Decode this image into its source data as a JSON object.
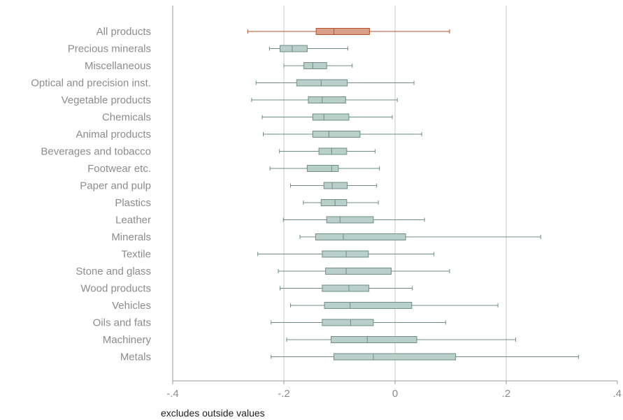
{
  "chart_data": {
    "type": "boxplot",
    "orientation": "horizontal",
    "xlim": [
      -0.4,
      0.4
    ],
    "xticks": [
      {
        "value": -0.4,
        "label": "-.4"
      },
      {
        "value": -0.2,
        "label": "-.2"
      },
      {
        "value": 0,
        "label": "0"
      },
      {
        "value": 0.2,
        "label": ".2"
      },
      {
        "value": 0.4,
        "label": ".4"
      }
    ],
    "grid": true,
    "colors": {
      "highlight_fill": "#d9a089",
      "highlight_stroke": "#b4522f",
      "box_fill": "#b9cfc9",
      "box_stroke": "#6d8e85",
      "grid": "#c8c8c8",
      "axis": "#9a9a9a"
    },
    "categories": [
      {
        "label": "All products",
        "highlight": true,
        "whisker_low": -0.265,
        "q1": -0.142,
        "median": -0.11,
        "q3": -0.046,
        "whisker_high": 0.098
      },
      {
        "label": "Precious minerals",
        "whisker_low": -0.226,
        "q1": -0.207,
        "median": -0.185,
        "q3": -0.158,
        "whisker_high": -0.085
      },
      {
        "label": "Miscellaneous",
        "whisker_low": -0.2,
        "q1": -0.164,
        "median": -0.148,
        "q3": -0.123,
        "whisker_high": -0.077
      },
      {
        "label": "Optical and precision inst.",
        "whisker_low": -0.25,
        "q1": -0.177,
        "median": -0.133,
        "q3": -0.086,
        "whisker_high": 0.034
      },
      {
        "label": "Vegetable products",
        "whisker_low": -0.258,
        "q1": -0.156,
        "median": -0.131,
        "q3": -0.089,
        "whisker_high": 0.004
      },
      {
        "label": "Chemicals",
        "whisker_low": -0.239,
        "q1": -0.148,
        "median": -0.128,
        "q3": -0.083,
        "whisker_high": -0.005
      },
      {
        "label": "Animal products",
        "whisker_low": -0.237,
        "q1": -0.148,
        "median": -0.119,
        "q3": -0.063,
        "whisker_high": 0.048
      },
      {
        "label": "Beverages and tobacco",
        "whisker_low": -0.208,
        "q1": -0.137,
        "median": -0.114,
        "q3": -0.087,
        "whisker_high": -0.036
      },
      {
        "label": "Footwear etc.",
        "whisker_low": -0.225,
        "q1": -0.158,
        "median": -0.114,
        "q3": -0.102,
        "whisker_high": -0.028
      },
      {
        "label": "Paper and pulp",
        "whisker_low": -0.188,
        "q1": -0.128,
        "median": -0.113,
        "q3": -0.086,
        "whisker_high": -0.033
      },
      {
        "label": "Plastics",
        "whisker_low": -0.165,
        "q1": -0.133,
        "median": -0.108,
        "q3": -0.087,
        "whisker_high": -0.03
      },
      {
        "label": "Leather",
        "whisker_low": -0.201,
        "q1": -0.123,
        "median": -0.099,
        "q3": -0.039,
        "whisker_high": 0.053
      },
      {
        "label": "Minerals",
        "whisker_low": -0.171,
        "q1": -0.143,
        "median": -0.093,
        "q3": 0.019,
        "whisker_high": 0.262
      },
      {
        "label": "Textile",
        "whisker_low": -0.247,
        "q1": -0.131,
        "median": -0.088,
        "q3": -0.048,
        "whisker_high": 0.07
      },
      {
        "label": "Stone and glass",
        "whisker_low": -0.21,
        "q1": -0.125,
        "median": -0.088,
        "q3": -0.007,
        "whisker_high": 0.098
      },
      {
        "label": "Wood products",
        "whisker_low": -0.207,
        "q1": -0.131,
        "median": -0.083,
        "q3": -0.047,
        "whisker_high": 0.031
      },
      {
        "label": "Vehicles",
        "whisker_low": -0.188,
        "q1": -0.127,
        "median": -0.081,
        "q3": 0.03,
        "whisker_high": 0.185
      },
      {
        "label": "Oils and fats",
        "whisker_low": -0.223,
        "q1": -0.131,
        "median": -0.08,
        "q3": -0.039,
        "whisker_high": 0.091
      },
      {
        "label": "Machinery",
        "whisker_low": -0.195,
        "q1": -0.115,
        "median": -0.05,
        "q3": 0.039,
        "whisker_high": 0.217
      },
      {
        "label": "Metals",
        "whisker_low": -0.223,
        "q1": -0.11,
        "median": -0.039,
        "q3": 0.109,
        "whisker_high": 0.33
      }
    ]
  },
  "note": "excludes outside values"
}
